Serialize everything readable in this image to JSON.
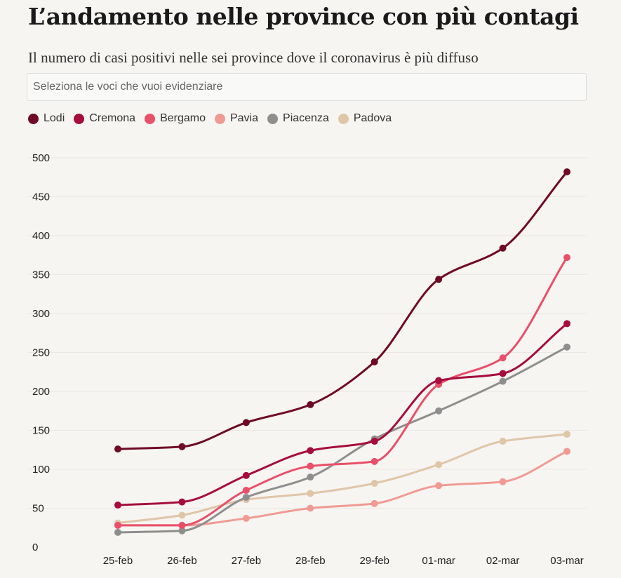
{
  "header": {
    "title": "L’andamento nelle province con più contagi",
    "subtitle": "Il numero di casi positivi nelle sei province dove il coronavirus è più diffuso"
  },
  "search": {
    "placeholder": "Seleziona le voci che vuoi evidenziare"
  },
  "chart_data": {
    "type": "line",
    "title": "L’andamento nelle province con più contagi",
    "subtitle": "Il numero di casi positivi nelle sei province dove il coronavirus è più diffuso",
    "xlabel": "",
    "ylabel": "",
    "categories": [
      "25-feb",
      "26-feb",
      "27-feb",
      "28-feb",
      "29-feb",
      "01-mar",
      "02-mar",
      "03-mar"
    ],
    "ylim": [
      0,
      500
    ],
    "yticks": [
      0,
      50,
      100,
      150,
      200,
      250,
      300,
      350,
      400,
      450,
      500
    ],
    "grid": true,
    "legend_position": "top-left",
    "series": [
      {
        "name": "Padova",
        "color": "#dfc6a9",
        "values": [
          31,
          41,
          61,
          69,
          82,
          106,
          136,
          145
        ]
      },
      {
        "name": "Pavia",
        "color": "#ef9b94",
        "values": [
          28,
          28,
          37,
          50,
          56,
          79,
          84,
          123
        ]
      },
      {
        "name": "Piacenza",
        "color": "#8e8e8e",
        "values": [
          19,
          21,
          64,
          90,
          139,
          175,
          213,
          257
        ]
      },
      {
        "name": "Bergamo",
        "color": "#e8506a",
        "values": [
          28,
          28,
          73,
          104,
          110,
          209,
          243,
          372
        ]
      },
      {
        "name": "Cremona",
        "color": "#a50d3d",
        "values": [
          54,
          58,
          92,
          124,
          136,
          214,
          223,
          287
        ]
      },
      {
        "name": "Lodi",
        "color": "#6e0a25",
        "values": [
          126,
          129,
          160,
          183,
          238,
          344,
          384,
          482
        ]
      }
    ],
    "legend_order": [
      "Lodi",
      "Cremona",
      "Bergamo",
      "Pavia",
      "Piacenza",
      "Padova"
    ]
  }
}
